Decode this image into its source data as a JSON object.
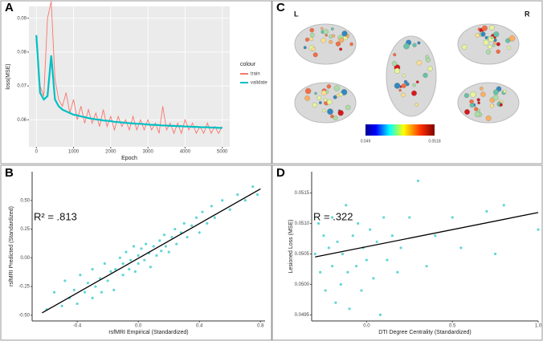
{
  "chart_data": [
    {
      "type": "line",
      "panel": "A",
      "xlabel": "Epoch",
      "ylabel": "loss(MSE)",
      "legend_title": "colour",
      "legend": "right",
      "grid": true,
      "background": "#EBEBEB",
      "x": [
        0,
        100,
        200,
        300,
        400,
        500,
        600,
        700,
        800,
        900,
        1000,
        1100,
        1200,
        1300,
        1400,
        1500,
        1600,
        1700,
        1800,
        1900,
        2000,
        2100,
        2200,
        2300,
        2400,
        2500,
        2600,
        2700,
        2800,
        2900,
        3000,
        3100,
        3200,
        3300,
        3400,
        3500,
        3600,
        3700,
        3800,
        3900,
        4000,
        4100,
        4200,
        4300,
        4400,
        4500,
        4600,
        4700,
        4800,
        4900,
        5000
      ],
      "series": [
        {
          "name": "train",
          "color": "#F8766D",
          "values": [
            0.083,
            0.07,
            0.067,
            0.09,
            0.095,
            0.072,
            0.066,
            0.064,
            0.068,
            0.062,
            0.066,
            0.06,
            0.064,
            0.059,
            0.063,
            0.059,
            0.062,
            0.058,
            0.063,
            0.058,
            0.061,
            0.057,
            0.061,
            0.058,
            0.06,
            0.057,
            0.061,
            0.057,
            0.06,
            0.057,
            0.06,
            0.057,
            0.059,
            0.056,
            0.064,
            0.057,
            0.059,
            0.056,
            0.059,
            0.056,
            0.06,
            0.057,
            0.059,
            0.056,
            0.058,
            0.056,
            0.059,
            0.056,
            0.058,
            0.056,
            0.058
          ]
        },
        {
          "name": "validate",
          "color": "#00BFC4",
          "values": [
            0.085,
            0.068,
            0.066,
            0.067,
            0.079,
            0.066,
            0.064,
            0.063,
            0.0625,
            0.062,
            0.0615,
            0.0613,
            0.061,
            0.0608,
            0.0605,
            0.0603,
            0.0601,
            0.06,
            0.0598,
            0.0597,
            0.0596,
            0.0594,
            0.0593,
            0.0592,
            0.0591,
            0.059,
            0.0589,
            0.0588,
            0.0588,
            0.0587,
            0.0586,
            0.0585,
            0.0585,
            0.0584,
            0.0583,
            0.0583,
            0.0582,
            0.0582,
            0.0581,
            0.0581,
            0.058,
            0.058,
            0.0579,
            0.0579,
            0.0578,
            0.0578,
            0.0578,
            0.0577,
            0.0577,
            0.0576,
            0.0576
          ]
        }
      ],
      "xlim": [
        -200,
        5200
      ],
      "xticks": [
        0,
        1000,
        2000,
        3000,
        4000,
        5000
      ],
      "ylim": [
        0.052,
        0.0935
      ],
      "yticks": [
        0.06,
        0.07,
        0.08,
        0.09
      ]
    },
    {
      "type": "brain",
      "panel": "C",
      "left_label": "L",
      "right_label": "R",
      "clim": [
        0.049,
        0.0518
      ],
      "cticks": [
        0.049,
        0.0518
      ]
    },
    {
      "type": "scatter",
      "panel": "B",
      "xlabel": "rsfMRI Empirical (Standardized)",
      "ylabel": "rsfMRI Predicted (Standardized)",
      "annotation": "R² = .813",
      "grid": false,
      "color": "#20C5C5",
      "x": [
        -0.6,
        -0.55,
        -0.5,
        -0.48,
        -0.45,
        -0.42,
        -0.4,
        -0.38,
        -0.35,
        -0.33,
        -0.3,
        -0.3,
        -0.28,
        -0.25,
        -0.24,
        -0.22,
        -0.2,
        -0.18,
        -0.16,
        -0.15,
        -0.12,
        -0.1,
        -0.1,
        -0.08,
        -0.06,
        -0.05,
        -0.03,
        -0.02,
        0.0,
        0.0,
        0.02,
        0.04,
        0.05,
        0.07,
        0.08,
        0.1,
        0.12,
        0.14,
        0.15,
        0.17,
        0.18,
        0.2,
        0.22,
        0.24,
        0.25,
        0.28,
        0.3,
        0.32,
        0.35,
        0.38,
        0.4,
        0.42,
        0.45,
        0.48,
        0.5,
        0.55,
        0.6,
        0.65,
        0.7,
        0.75,
        0.78
      ],
      "values": [
        -0.45,
        -0.3,
        -0.42,
        -0.2,
        -0.35,
        -0.28,
        -0.4,
        -0.15,
        -0.3,
        -0.22,
        -0.1,
        -0.35,
        -0.25,
        -0.18,
        -0.3,
        -0.05,
        -0.2,
        -0.12,
        -0.28,
        -0.1,
        0.0,
        -0.15,
        -0.05,
        0.05,
        -0.1,
        -0.02,
        0.1,
        -0.12,
        0.02,
        -0.05,
        0.08,
        -0.02,
        0.12,
        0.04,
        -0.08,
        0.1,
        0.02,
        0.15,
        0.06,
        0.2,
        0.1,
        0.05,
        0.18,
        0.25,
        0.12,
        0.22,
        0.3,
        0.18,
        0.28,
        0.35,
        0.22,
        0.4,
        0.3,
        0.45,
        0.35,
        0.5,
        0.42,
        0.55,
        0.5,
        0.62,
        0.55
      ],
      "fit": {
        "x": [
          -0.63,
          0.8
        ],
        "y": [
          -0.48,
          0.6
        ]
      },
      "xlim": [
        -0.695,
        0.83
      ],
      "xticks": [
        -0.4,
        {
          "value": 0,
          "label": "0.0"
        },
        0.4,
        0.8
      ],
      "ylim": [
        -0.55,
        0.75
      ],
      "yticks": [
        {
          "value": -0.5,
          "label": "-0.50"
        },
        {
          "value": -0.25,
          "label": "-0.25"
        },
        {
          "value": 0,
          "label": "0.00"
        },
        {
          "value": 0.25,
          "label": "0.25"
        },
        {
          "value": 0.5,
          "label": "0.50"
        }
      ]
    },
    {
      "type": "scatter",
      "panel": "D",
      "xlabel": "DTI Degree Centrality (Standardized)",
      "ylabel": "Lesioned Loss (MSE)",
      "annotation": "R = .322",
      "grid": false,
      "color": "#20C5C5",
      "x": [
        -0.3,
        -0.28,
        -0.27,
        -0.25,
        -0.24,
        -0.22,
        -0.2,
        -0.2,
        -0.18,
        -0.17,
        -0.15,
        -0.14,
        -0.12,
        -0.11,
        -0.1,
        -0.08,
        -0.06,
        -0.05,
        -0.03,
        -0.02,
        0.0,
        0.02,
        0.04,
        0.06,
        0.08,
        0.1,
        0.12,
        0.15,
        0.18,
        0.2,
        0.25,
        0.3,
        0.35,
        0.4,
        0.5,
        0.55,
        0.7,
        0.75,
        0.8,
        1.0
      ],
      "values": [
        0.0505,
        0.051,
        0.0502,
        0.0508,
        0.0499,
        0.0506,
        0.0511,
        0.0503,
        0.0497,
        0.0507,
        0.05,
        0.0505,
        0.0513,
        0.0502,
        0.0496,
        0.0508,
        0.0503,
        0.051,
        0.0499,
        0.0506,
        0.0504,
        0.0509,
        0.0501,
        0.0507,
        0.0495,
        0.0511,
        0.0504,
        0.0508,
        0.0502,
        0.0506,
        0.0511,
        0.0517,
        0.0503,
        0.0508,
        0.0511,
        0.0506,
        0.0512,
        0.0505,
        0.0513,
        0.0509
      ],
      "fit": {
        "x": [
          -0.3,
          1.0
        ],
        "y": [
          0.05045,
          0.05118
        ]
      },
      "xlim": [
        -0.32,
        1.0
      ],
      "xticks": [
        {
          "value": 0,
          "label": "0.0"
        },
        0.5,
        {
          "value": 1,
          "label": "1.0"
        }
      ],
      "ylim": [
        0.0494,
        0.05185
      ],
      "yticks": [
        0.0495,
        {
          "value": 0.05,
          "label": "0.0500"
        },
        0.0505,
        {
          "value": 0.051,
          "label": "0.0510"
        },
        0.0515
      ]
    }
  ]
}
